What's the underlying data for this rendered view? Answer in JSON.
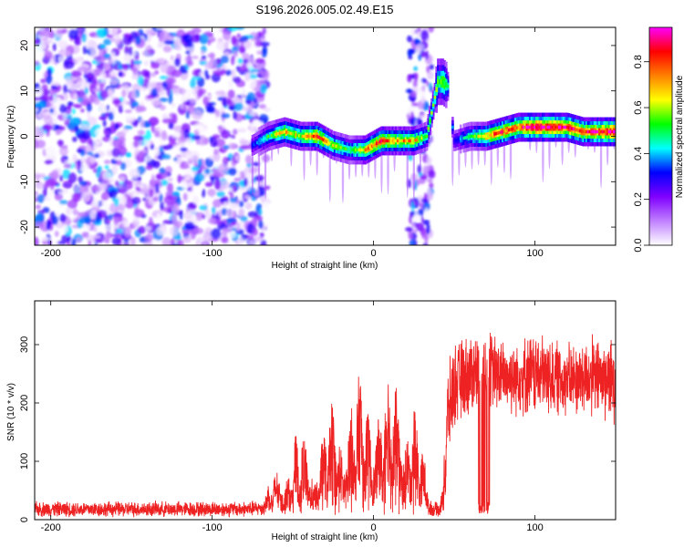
{
  "title": "S196.2026.005.02.49.E15",
  "chart_data": [
    {
      "type": "heatmap",
      "name": "spectrogram",
      "xlabel": "Height of straight line (km)",
      "ylabel": "Frequency (Hz)",
      "xlim": [
        -210,
        150
      ],
      "ylim": [
        -24,
        24
      ],
      "xticks": [
        -200,
        -100,
        0,
        100
      ],
      "yticks": [
        -20,
        -10,
        0,
        10,
        20
      ],
      "colorbar": {
        "label": "Normalized spectral amplitude",
        "range": [
          0.0,
          0.95
        ],
        "ticks": [
          "0.0",
          "0.2",
          "0.4",
          "0.6",
          "0.8"
        ],
        "tick_values": [
          0.0,
          0.2,
          0.4,
          0.6,
          0.8
        ],
        "colors": [
          "#ffffff",
          "#c080ff",
          "#8000ff",
          "#0000ff",
          "#00ffff",
          "#00ff00",
          "#ffff00",
          "#ff8000",
          "#ff0000",
          "#ff00ff"
        ]
      },
      "ridge": {
        "x": [
          -75,
          -65,
          -55,
          -45,
          -35,
          -25,
          -15,
          -5,
          5,
          15,
          25,
          33,
          40,
          43,
          46,
          50,
          60,
          70,
          80,
          90,
          100,
          110,
          120,
          130,
          140,
          150
        ],
        "y": [
          -2,
          0,
          1,
          0,
          0,
          -2,
          -3,
          -3,
          -1,
          -1,
          -1,
          0,
          12,
          12,
          11,
          -1,
          0,
          0,
          1,
          2,
          2,
          2,
          2,
          1,
          1,
          1
        ],
        "peak": [
          0.3,
          0.5,
          0.7,
          0.6,
          0.8,
          0.6,
          0.5,
          0.7,
          0.8,
          0.7,
          0.7,
          0.5,
          0.6,
          0.6,
          0.5,
          0.3,
          0.5,
          0.7,
          0.8,
          0.8,
          0.95,
          0.9,
          0.85,
          0.8,
          0.85,
          0.95
        ]
      },
      "noise_region_x": [
        -210,
        -66
      ]
    },
    {
      "type": "line",
      "name": "snr",
      "xlabel": "Height of straight line (km)",
      "ylabel": "SNR (10 * v/v)",
      "xlim": [
        -210,
        150
      ],
      "ylim": [
        0,
        375
      ],
      "xticks": [
        -200,
        -100,
        0,
        100
      ],
      "yticks": [
        0,
        100,
        200,
        300
      ],
      "color": "#ee2222",
      "envelope_x": [
        -210,
        -80,
        -68,
        -62,
        -55,
        -45,
        -35,
        -25,
        -15,
        -5,
        5,
        15,
        25,
        35,
        43,
        46,
        50,
        60,
        70,
        80,
        100,
        120,
        140,
        150
      ],
      "envelope_mean": [
        18,
        18,
        20,
        55,
        70,
        90,
        80,
        120,
        130,
        150,
        140,
        160,
        120,
        40,
        30,
        180,
        230,
        250,
        260,
        245,
        250,
        240,
        245,
        235
      ],
      "envelope_spread": [
        15,
        15,
        15,
        50,
        60,
        70,
        70,
        100,
        90,
        110,
        100,
        80,
        90,
        20,
        20,
        90,
        80,
        80,
        80,
        70,
        80,
        70,
        80,
        80
      ]
    }
  ]
}
